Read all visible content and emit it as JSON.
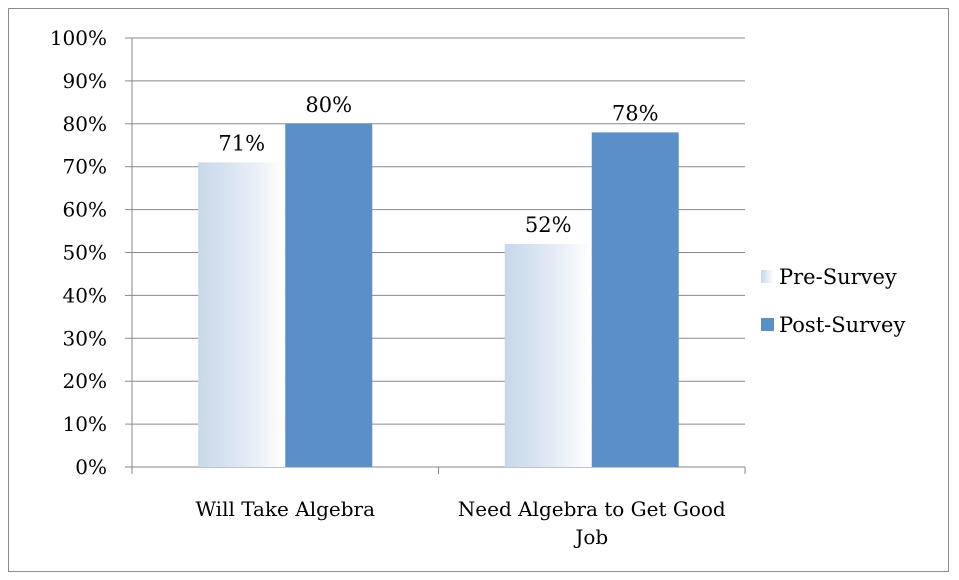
{
  "chart_data": {
    "type": "bar",
    "categories": [
      "Will Take Algebra",
      "Need Algebra to Get Good Job"
    ],
    "category_lines": [
      [
        "Will Take Algebra"
      ],
      [
        "Need Algebra to Get Good",
        "Job"
      ]
    ],
    "series": [
      {
        "name": "Pre-Survey",
        "values": [
          71,
          52
        ],
        "labels": [
          "71%",
          "52%"
        ],
        "color": "#dbe5f1"
      },
      {
        "name": "Post-Survey",
        "values": [
          80,
          78
        ],
        "labels": [
          "80%",
          "78%"
        ],
        "color": "#5a8fc7"
      }
    ],
    "yticks": [
      "0%",
      "10%",
      "20%",
      "30%",
      "40%",
      "50%",
      "60%",
      "70%",
      "80%",
      "90%",
      "100%"
    ],
    "ylim": [
      0,
      100
    ],
    "grid": true,
    "legend": "right"
  }
}
